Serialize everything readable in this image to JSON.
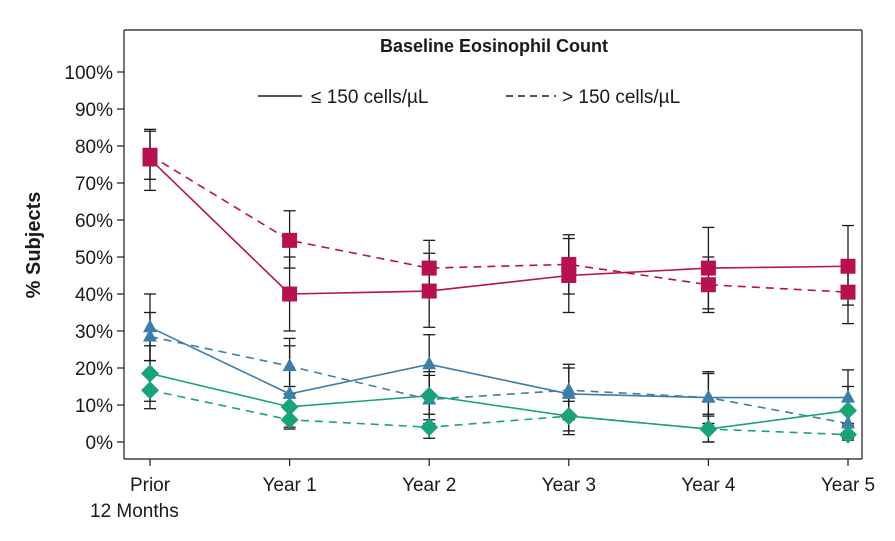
{
  "chart_data": {
    "type": "line",
    "title": "Baseline Eosinophil Count",
    "ylabel": "% Subjects",
    "xlabel": "",
    "ylim": [
      0,
      100
    ],
    "y_ticks": [
      "0%",
      "10%",
      "20%",
      "30%",
      "40%",
      "50%",
      "60%",
      "70%",
      "80%",
      "90%",
      "100%"
    ],
    "categories": [
      [
        "Prior",
        "12 Months"
      ],
      [
        "Year 1"
      ],
      [
        "Year 2"
      ],
      [
        "Year 3"
      ],
      [
        "Year 4"
      ],
      [
        "Year 5"
      ]
    ],
    "legend": [
      {
        "label": "≤ 150 cells/µL",
        "style": "solid"
      },
      {
        "label": "> 150 cells/µL",
        "style": "dashed"
      }
    ],
    "legend_position": "top-center",
    "grid": false,
    "error_bars": true,
    "series": [
      {
        "group": "magenta-square",
        "eos": "≤ 150 cells/µL",
        "dash": false,
        "marker": "square",
        "color": "#b5124f",
        "values": [
          76.5,
          40,
          40.8,
          45,
          47,
          47.5
        ],
        "err": [
          [
            68,
            84
          ],
          [
            30,
            50
          ],
          [
            31,
            51
          ],
          [
            35,
            55
          ],
          [
            36,
            58
          ],
          [
            37,
            58.5
          ]
        ]
      },
      {
        "group": "magenta-square",
        "eos": "> 150 cells/µL",
        "dash": true,
        "marker": "square",
        "color": "#b5124f",
        "values": [
          77.5,
          54.5,
          47,
          48,
          42.5,
          40.5
        ],
        "err": [
          [
            71,
            84.5
          ],
          [
            47,
            62.5
          ],
          [
            39,
            54.5
          ],
          [
            40,
            56
          ],
          [
            35,
            50
          ],
          [
            32,
            48
          ]
        ]
      },
      {
        "group": "blue-triangle",
        "eos": "≤ 150 cells/µL",
        "dash": false,
        "marker": "triangle",
        "color": "#3d7da8",
        "values": [
          31,
          13,
          21,
          13,
          12,
          12
        ],
        "err": [
          [
            22,
            40
          ],
          [
            6,
            26
          ],
          [
            13,
            29
          ],
          [
            6,
            20
          ],
          [
            5,
            19
          ],
          [
            5,
            19.5
          ]
        ]
      },
      {
        "group": "blue-triangle",
        "eos": "> 150 cells/µL",
        "dash": true,
        "marker": "triangle",
        "color": "#3d7da8",
        "values": [
          28.5,
          20.5,
          11.5,
          14,
          12,
          5
        ],
        "err": [
          [
            22,
            35
          ],
          [
            13,
            28
          ],
          [
            5,
            18
          ],
          [
            7,
            21
          ],
          [
            5,
            18.5
          ],
          [
            1,
            9
          ]
        ]
      },
      {
        "group": "green-diamond",
        "eos": "≤ 150 cells/µL",
        "dash": false,
        "marker": "diamond",
        "color": "#1aa37a",
        "values": [
          18.5,
          9.5,
          12.5,
          7,
          3.5,
          8.5
        ],
        "err": [
          [
            11,
            26
          ],
          [
            4,
            15
          ],
          [
            6,
            19
          ],
          [
            2,
            12
          ],
          [
            0,
            7.5
          ],
          [
            2,
            15
          ]
        ]
      },
      {
        "group": "green-diamond",
        "eos": "> 150 cells/µL",
        "dash": true,
        "marker": "diamond",
        "color": "#1aa37a",
        "values": [
          14,
          6,
          4,
          7,
          3.5,
          2
        ],
        "err": [
          [
            9,
            19
          ],
          [
            3.5,
            10
          ],
          [
            1,
            7.5
          ],
          [
            3,
            11
          ],
          [
            0,
            7
          ],
          [
            0.5,
            4.5
          ]
        ]
      }
    ]
  }
}
